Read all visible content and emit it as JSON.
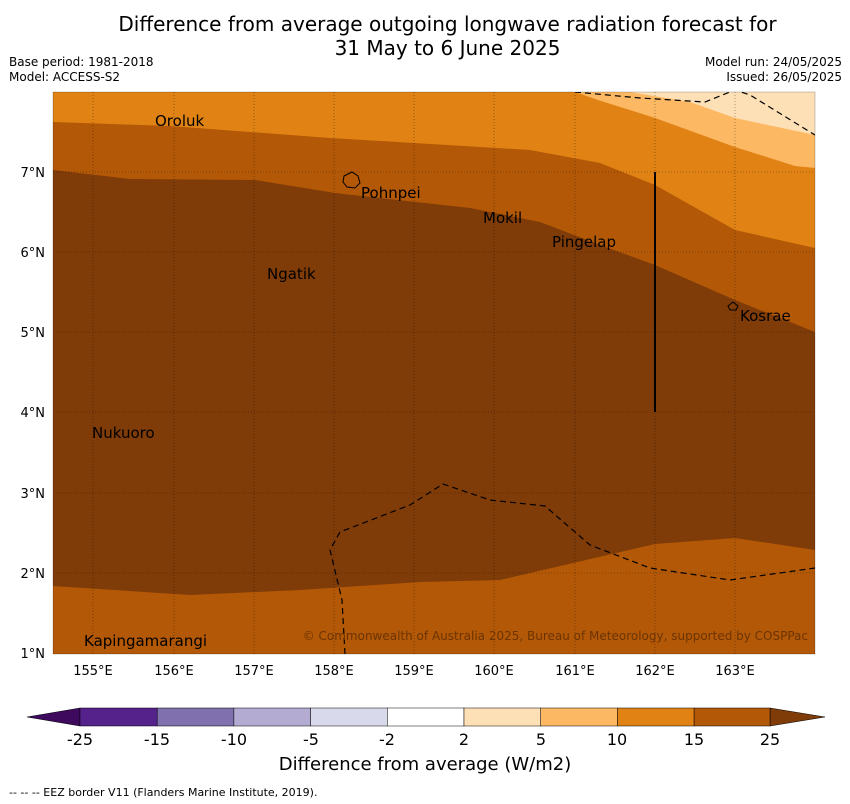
{
  "title": {
    "line1": "Difference from average outgoing longwave radiation forecast for",
    "line2": "31 May to 6 June 2025"
  },
  "meta": {
    "base_period": "Base period: 1981-2018",
    "model": "Model: ACCESS-S2",
    "model_run": "Model run: 24/05/2025",
    "issued": "Issued: 26/05/2025"
  },
  "map": {
    "lon_ticks": [
      "155°E",
      "156°E",
      "157°E",
      "158°E",
      "159°E",
      "160°E",
      "161°E",
      "162°E",
      "163°E"
    ],
    "lat_ticks": [
      "1°N",
      "2°N",
      "3°N",
      "4°N",
      "5°N",
      "6°N",
      "7°N"
    ],
    "places": [
      {
        "name": "Oroluk"
      },
      {
        "name": "Pohnpei"
      },
      {
        "name": "Mokil"
      },
      {
        "name": "Pingelap"
      },
      {
        "name": "Ngatik"
      },
      {
        "name": "Kosrae"
      },
      {
        "name": "Nukuoro"
      },
      {
        "name": "Kapingamarangi"
      }
    ],
    "copyright": "© Commonwealth of Australia 2025, Bureau of Meteorology, supported by COSPPac"
  },
  "colorbar": {
    "labels": [
      "-25",
      "-15",
      "-10",
      "-5",
      "-2",
      "2",
      "5",
      "10",
      "15",
      "25"
    ],
    "colors": {
      "under": "#3d0a5e",
      "bins": [
        "#55228b",
        "#8070ae",
        "#b3abd2",
        "#d9d9ec",
        "#ffffff",
        "#fee0b6",
        "#fdb863",
        "#e08214",
        "#b35806"
      ],
      "over": "#7f3b08"
    },
    "title": "Difference from average (W/m2)"
  },
  "footnote": "--  --  -- EEZ border V11 (Flanders Marine Institute, 2019)."
}
